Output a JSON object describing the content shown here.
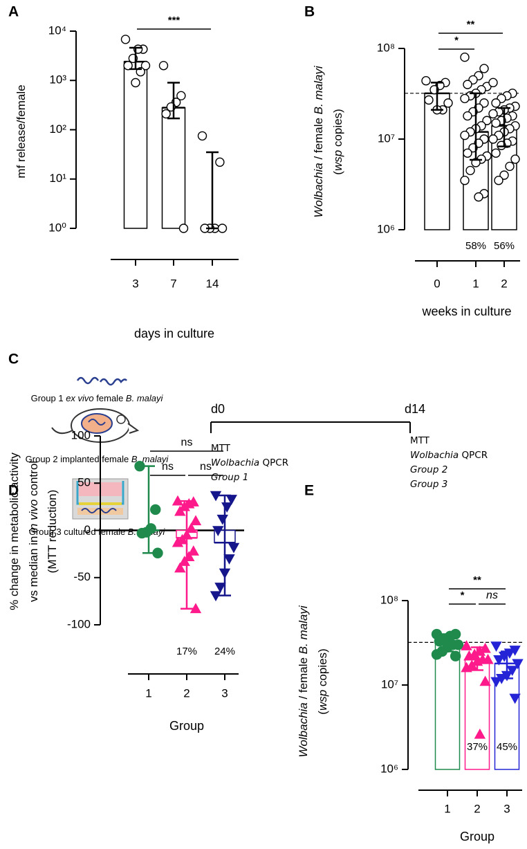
{
  "chart_data": [
    {
      "type": "bar",
      "panel_label": "A",
      "log_scale": true,
      "ylim": [
        1,
        10000
      ],
      "yticks": [
        {
          "value": 1,
          "label": "10⁰"
        },
        {
          "value": 10,
          "label": "10¹"
        },
        {
          "value": 100,
          "label": "10²"
        },
        {
          "value": 1000,
          "label": "10³"
        },
        {
          "value": 10000,
          "label": "10⁴"
        }
      ],
      "ylabel": [
        [
          {
            "text": "mf release/female"
          }
        ]
      ],
      "xlabel": "days in culture",
      "categories": [
        "3",
        "7",
        "14"
      ],
      "values": [
        2400,
        280,
        1
      ],
      "error_low": [
        1700,
        170,
        1
      ],
      "error_high": [
        4600,
        900,
        35
      ],
      "points": [
        [
          6800,
          4300,
          4300,
          2800,
          2000,
          2000,
          1500,
          900
        ],
        [
          2000,
          490,
          360,
          290,
          210,
          1
        ],
        [
          75,
          22,
          1,
          1,
          1,
          1
        ]
      ],
      "color": "#000000",
      "marker": "circle",
      "marker_fill": "#ffffff",
      "brackets": [
        {
          "from": "3",
          "to": "14",
          "label": "***"
        }
      ]
    },
    {
      "type": "bar",
      "panel_label": "B",
      "log_scale": true,
      "ylim": [
        1000000,
        100000000
      ],
      "yticks": [
        {
          "value": 1000000,
          "label": "10⁶"
        },
        {
          "value": 10000000,
          "label": "10⁷"
        },
        {
          "value": 100000000,
          "label": "10⁸"
        }
      ],
      "ylabel": [
        [
          {
            "text": "Wolbachia",
            "italic": true
          },
          {
            "text": " / female "
          },
          {
            "text": "B. malayi",
            "italic": true
          }
        ],
        [
          {
            "text": "("
          },
          {
            "text": "wsp",
            "italic": true
          },
          {
            "text": " copies)"
          }
        ]
      ],
      "xlabel": "weeks in culture",
      "categories": [
        "0",
        "1",
        "2"
      ],
      "values": [
        32000000,
        12000000,
        14000000
      ],
      "error_low": [
        21000000,
        5900000,
        8300000
      ],
      "error_high": [
        42000000,
        32000000,
        22000000
      ],
      "points": [
        [
          44000000,
          42000000,
          39000000,
          35000000,
          27000000,
          25000000,
          21000000,
          21000000
        ],
        [
          80000000,
          60000000,
          50000000,
          45000000,
          40000000,
          38000000,
          35000000,
          32000000,
          30000000,
          28000000,
          25000000,
          22000000,
          20000000,
          18000000,
          16000000,
          14000000,
          13000000,
          12000000,
          11000000,
          10000000,
          9000000,
          8000000,
          7000000,
          6500000,
          6000000,
          5500000,
          4500000,
          3500000,
          2500000,
          2300000
        ],
        [
          42000000,
          32000000,
          30000000,
          28000000,
          25000000,
          23000000,
          22000000,
          21000000,
          20000000,
          19000000,
          18000000,
          17000000,
          16000000,
          15000000,
          14000000,
          13000000,
          12000000,
          11000000,
          10000000,
          9500000,
          9000000,
          8500000,
          7000000,
          6000000,
          5000000,
          4000000,
          3500000
        ]
      ],
      "ref_line": 32000000,
      "color": "#000000",
      "marker": "circle",
      "marker_fill": "#ffffff",
      "brackets": [
        {
          "from": "0",
          "to": "1",
          "label": "*"
        },
        {
          "from": "0",
          "to": "2",
          "label": "**"
        }
      ],
      "annotations": [
        {
          "category": "1",
          "text": "58%"
        },
        {
          "category": "2",
          "text": "56%"
        }
      ]
    },
    {
      "type": "bar",
      "panel_label": "D",
      "log_scale": false,
      "ylim": [
        -100,
        100
      ],
      "yticks": [
        -100,
        -50,
        0,
        50,
        100
      ],
      "ylabel": [
        [
          {
            "text": "% change in metabolic activity"
          }
        ],
        [
          {
            "text": "vs median in "
          },
          {
            "text": "in vivo",
            "italic": true
          },
          {
            "text": " control"
          }
        ],
        [
          {
            "text": "(MTT reduction)"
          }
        ]
      ],
      "xlabel": "Group",
      "categories": [
        "1",
        "2",
        "3"
      ],
      "values": [
        0,
        -8,
        -13
      ],
      "error_low": [
        -24,
        -83,
        -69
      ],
      "error_high": [
        68,
        31,
        37
      ],
      "points": [
        [
          68,
          22,
          2,
          -2,
          -3,
          -24
        ],
        [
          31,
          30,
          28,
          25,
          20,
          10,
          2,
          -5,
          -10,
          -13,
          -22,
          -28,
          -33,
          -40,
          -83
        ],
        [
          37,
          33,
          25,
          12,
          0,
          -18,
          -30,
          -45,
          -60,
          -69
        ]
      ],
      "colors": [
        "#1f8a4c",
        "#ff1a8c",
        "#16168c"
      ],
      "markers": [
        "circle",
        "triangle",
        "triangle-down"
      ],
      "brackets": [
        {
          "from": "1",
          "to": "3",
          "label": "ns"
        },
        {
          "from": "1",
          "to": "2",
          "label": "ns"
        },
        {
          "from": "2",
          "to": "3",
          "label": "ns"
        }
      ],
      "annotations": [
        {
          "category": "2",
          "text": "17%"
        },
        {
          "category": "3",
          "text": "24%"
        }
      ]
    },
    {
      "type": "bar",
      "panel_label": "E",
      "log_scale": true,
      "ylim": [
        1000000,
        100000000
      ],
      "yticks": [
        {
          "value": 1000000,
          "label": "10⁶"
        },
        {
          "value": 10000000,
          "label": "10⁷"
        },
        {
          "value": 100000000,
          "label": "10⁸"
        }
      ],
      "ylabel": [
        [
          {
            "text": "Wolbachia",
            "italic": true
          },
          {
            "text": " / female "
          },
          {
            "text": "B. malayi",
            "italic": true
          }
        ],
        [
          {
            "text": "("
          },
          {
            "text": "wsp",
            "italic": true
          },
          {
            "text": " copies)"
          }
        ]
      ],
      "xlabel": "Group",
      "categories": [
        "1",
        "2",
        "3"
      ],
      "values": [
        32000000,
        20000000,
        18000000
      ],
      "error_low": [
        25000000,
        15000000,
        12000000
      ],
      "error_high": [
        40000000,
        28000000,
        25000000
      ],
      "points": [
        [
          40000000,
          40000000,
          38000000,
          35000000,
          33000000,
          30000000,
          30000000,
          28000000,
          25000000,
          23000000,
          22000000
        ],
        [
          29000000,
          27000000,
          25000000,
          23000000,
          22000000,
          20000000,
          20000000,
          19000000,
          17000000,
          16000000,
          11000000,
          2600000
        ],
        [
          29000000,
          26000000,
          24000000,
          22000000,
          20000000,
          18000000,
          15000000,
          13000000,
          12000000,
          11000000,
          7000000
        ]
      ],
      "ref_line": 32000000,
      "colors": [
        "#1f8a4c",
        "#ff1a8c",
        "#2424d6"
      ],
      "markers": [
        "circle",
        "triangle",
        "triangle-down"
      ],
      "brackets": [
        {
          "from": "1",
          "to": "2",
          "label": "*"
        },
        {
          "from": "1",
          "to": "3",
          "label": "**"
        },
        {
          "from": "2",
          "to": "3",
          "label": "ns",
          "italic": true
        }
      ],
      "annotations": [
        {
          "category": "2",
          "text": "37%"
        },
        {
          "category": "3",
          "text": "45%"
        }
      ]
    }
  ],
  "diagram": {
    "panel_label": "C",
    "groups": [
      {
        "color": "#2f5e1a",
        "segments": [
          {
            "text": "Group 1 "
          },
          {
            "text": "ex vivo",
            "italic": true
          },
          {
            "text": " female "
          },
          {
            "text": "B. malayi",
            "italic": true
          }
        ]
      },
      {
        "color": "#e8207a",
        "segments": [
          {
            "text": "Group 2 implanted female "
          },
          {
            "text": "B. malayi",
            "italic": true
          }
        ]
      },
      {
        "color": "#2323c8",
        "segments": [
          {
            "text": "Group 3 cultured female "
          },
          {
            "text": "B. malayi",
            "italic": true
          }
        ]
      }
    ],
    "timeline": {
      "start": "d0",
      "end": "d14"
    },
    "start_notes": [
      {
        "segments": [
          {
            "text": "MTT"
          }
        ]
      },
      {
        "segments": [
          {
            "text": "Wolbachia",
            "italic": true
          },
          {
            "text": " QPCR"
          }
        ]
      },
      {
        "color": "#2f5e1a",
        "segments": [
          {
            "text": "Group 1",
            "italic": true
          }
        ]
      }
    ],
    "end_notes": [
      {
        "segments": [
          {
            "text": "MTT"
          }
        ]
      },
      {
        "segments": [
          {
            "text": "Wolbachia",
            "italic": true
          },
          {
            "text": " QPCR"
          }
        ]
      },
      {
        "color": "#e8207a",
        "segments": [
          {
            "text": "Group 2",
            "italic": true
          }
        ]
      },
      {
        "color": "#2323c8",
        "segments": [
          {
            "text": "Group 3",
            "italic": true
          }
        ]
      }
    ]
  }
}
